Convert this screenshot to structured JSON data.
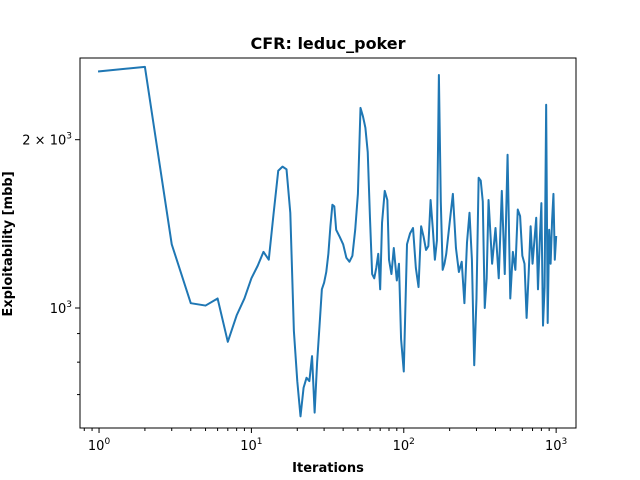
{
  "chart_data": {
    "type": "line",
    "title": "CFR: leduc_poker",
    "xlabel": "Iterations",
    "ylabel": "Exploitability [mbb]",
    "xscale": "log",
    "yscale": "log",
    "xlim": [
      0.75,
      1350
    ],
    "ylim": [
      610,
      2800
    ],
    "grid": false,
    "x_ticks": [
      {
        "value": 1,
        "base": "10",
        "exp": "0"
      },
      {
        "value": 10,
        "base": "10",
        "exp": "1"
      },
      {
        "value": 100,
        "base": "10",
        "exp": "2"
      },
      {
        "value": 1000,
        "base": "10",
        "exp": "3"
      }
    ],
    "y_ticks": [
      {
        "value": 1000,
        "base": "10",
        "exp": "3",
        "prefix": ""
      },
      {
        "value": 2000,
        "base": "10",
        "exp": "3",
        "prefix": "2 × "
      }
    ],
    "series": [
      {
        "color": "#1f77b4",
        "x": [
          1,
          2,
          3,
          4,
          5,
          6,
          7,
          8,
          9,
          10,
          11,
          12,
          13,
          14,
          15,
          16,
          17,
          18,
          19,
          20,
          21,
          22,
          23,
          24,
          25,
          26,
          27,
          28,
          29,
          30,
          31,
          32,
          33,
          34,
          35,
          36,
          38,
          40,
          42,
          44,
          46,
          48,
          50,
          52,
          54,
          55,
          56,
          58,
          60,
          62,
          64,
          66,
          68,
          70,
          72,
          75,
          78,
          80,
          83,
          86,
          90,
          93,
          96,
          100,
          105,
          110,
          115,
          120,
          125,
          130,
          135,
          140,
          145,
          150,
          155,
          160,
          165,
          170,
          175,
          180,
          185,
          190,
          200,
          210,
          220,
          230,
          240,
          250,
          260,
          270,
          280,
          290,
          300,
          310,
          320,
          330,
          340,
          350,
          360,
          380,
          400,
          420,
          440,
          460,
          480,
          500,
          520,
          540,
          560,
          580,
          600,
          620,
          640,
          660,
          680,
          700,
          720,
          740,
          760,
          780,
          800,
          820,
          840,
          860,
          880,
          900,
          920,
          940,
          960,
          980,
          1000
        ],
        "values": [
          2650,
          2700,
          1300,
          1020,
          1010,
          1040,
          870,
          970,
          1040,
          1130,
          1190,
          1260,
          1220,
          1480,
          1760,
          1790,
          1770,
          1480,
          910,
          740,
          640,
          720,
          750,
          740,
          820,
          650,
          800,
          930,
          1080,
          1110,
          1160,
          1250,
          1400,
          1530,
          1520,
          1380,
          1340,
          1300,
          1230,
          1210,
          1240,
          1380,
          1600,
          2280,
          2200,
          2150,
          2100,
          1900,
          1450,
          1150,
          1130,
          1180,
          1250,
          1080,
          1420,
          1620,
          1560,
          1220,
          1150,
          1280,
          1120,
          1200,
          880,
          770,
          1300,
          1360,
          1390,
          1180,
          1090,
          1400,
          1340,
          1270,
          1290,
          1560,
          1390,
          1220,
          1320,
          2610,
          1550,
          1170,
          1200,
          1250,
          1420,
          1600,
          1280,
          1160,
          1210,
          1020,
          1310,
          1480,
          1220,
          790,
          1040,
          1710,
          1690,
          1550,
          1000,
          1130,
          1560,
          1200,
          1390,
          1130,
          1620,
          1150,
          1880,
          1040,
          1260,
          1170,
          1500,
          1460,
          1240,
          1200,
          960,
          1150,
          1400,
          1200,
          1320,
          1450,
          1080,
          1310,
          1540,
          930,
          1090,
          2310,
          940,
          1380,
          1200,
          1430,
          1600,
          1220,
          1340
        ]
      }
    ]
  }
}
